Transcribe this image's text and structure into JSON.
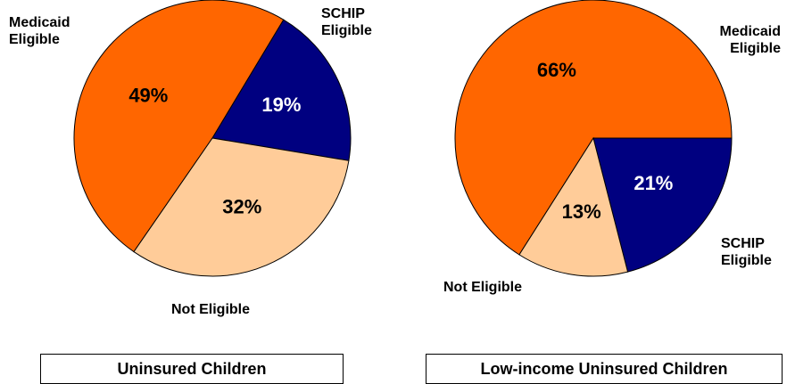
{
  "chart_data": [
    {
      "type": "pie",
      "title": "Uninsured Children",
      "categories": [
        "Medicaid Eligible",
        "SCHIP Eligible",
        "Not Eligible"
      ],
      "values": [
        49,
        19,
        32
      ],
      "value_labels": [
        "49%",
        "19%",
        "32%"
      ],
      "colors": [
        "#ff6600",
        "#000080",
        "#ffcc99"
      ]
    },
    {
      "type": "pie",
      "title": "Low-income Uninsured Children",
      "categories": [
        "Medicaid Eligible",
        "SCHIP Eligible",
        "Not Eligible"
      ],
      "values": [
        66,
        21,
        13
      ],
      "value_labels": [
        "66%",
        "21%",
        "13%"
      ],
      "colors": [
        "#ff6600",
        "#000080",
        "#ffcc99"
      ]
    }
  ]
}
